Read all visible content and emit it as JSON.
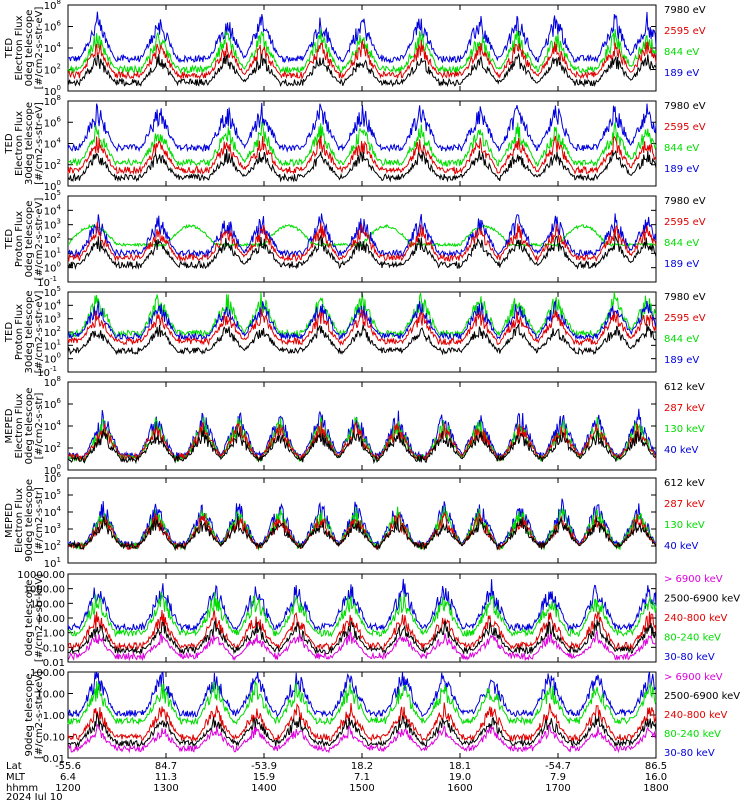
{
  "panels": [
    {
      "ylabel_lines": [
        "TED",
        "Electron Flux",
        "0deg telescope",
        "[#/cm2-s-str-eV]"
      ],
      "yticks": [
        {
          "label": "10",
          "exp": "0"
        },
        {
          "label": "10",
          "exp": "2"
        },
        {
          "label": "10",
          "exp": "4"
        },
        {
          "label": "10",
          "exp": "6"
        },
        {
          "label": "10",
          "exp": "8"
        }
      ],
      "ylim": [
        0,
        8
      ],
      "legend": [
        {
          "text": "7980 eV",
          "color": "#000000"
        },
        {
          "text": "2595 eV",
          "color": "#e00000"
        },
        {
          "text": "844 eV",
          "color": "#00dd00"
        },
        {
          "text": "189 eV",
          "color": "#0000dd"
        }
      ]
    },
    {
      "ylabel_lines": [
        "TED",
        "Electron Flux",
        "30deg telescope",
        "[#/cm2-s-str-eV]"
      ],
      "yticks": [
        {
          "label": "10",
          "exp": "0"
        },
        {
          "label": "10",
          "exp": "2"
        },
        {
          "label": "10",
          "exp": "4"
        },
        {
          "label": "10",
          "exp": "6"
        },
        {
          "label": "10",
          "exp": "8"
        }
      ],
      "ylim": [
        0,
        8
      ],
      "legend": [
        {
          "text": "7980 eV",
          "color": "#000000"
        },
        {
          "text": "2595 eV",
          "color": "#e00000"
        },
        {
          "text": "844 eV",
          "color": "#00dd00"
        },
        {
          "text": "189 eV",
          "color": "#0000dd"
        }
      ]
    },
    {
      "ylabel_lines": [
        "TED",
        "Proton Flux",
        "0deg telescope",
        "[#/cm2-s-str-eV]"
      ],
      "yticks": [
        {
          "label": "10",
          "exp": "-1"
        },
        {
          "label": "10",
          "exp": "0"
        },
        {
          "label": "10",
          "exp": "1"
        },
        {
          "label": "10",
          "exp": "2"
        },
        {
          "label": "10",
          "exp": "3"
        },
        {
          "label": "10",
          "exp": "4"
        },
        {
          "label": "10",
          "exp": "5"
        }
      ],
      "ylim": [
        -1,
        5
      ],
      "legend": [
        {
          "text": "7980 eV",
          "color": "#000000"
        },
        {
          "text": "2595 eV",
          "color": "#e00000"
        },
        {
          "text": "844 eV",
          "color": "#00dd00"
        },
        {
          "text": "189 eV",
          "color": "#0000dd"
        }
      ]
    },
    {
      "ylabel_lines": [
        "TED",
        "Proton Flux",
        "30deg telescope",
        "[#/cm2-s-str-eV]"
      ],
      "yticks": [
        {
          "label": "10",
          "exp": "-1"
        },
        {
          "label": "10",
          "exp": "0"
        },
        {
          "label": "10",
          "exp": "1"
        },
        {
          "label": "10",
          "exp": "2"
        },
        {
          "label": "10",
          "exp": "3"
        },
        {
          "label": "10",
          "exp": "4"
        },
        {
          "label": "10",
          "exp": "5"
        }
      ],
      "ylim": [
        -1,
        5
      ],
      "legend": [
        {
          "text": "7980 eV",
          "color": "#000000"
        },
        {
          "text": "2595 eV",
          "color": "#e00000"
        },
        {
          "text": "844 eV",
          "color": "#00dd00"
        },
        {
          "text": "189 eV",
          "color": "#0000dd"
        }
      ]
    },
    {
      "ylabel_lines": [
        "MEPED",
        "Electron Flux",
        "0deg telescope",
        "[#/cm2-s-str]"
      ],
      "yticks": [
        {
          "label": "10",
          "exp": "0"
        },
        {
          "label": "10",
          "exp": "2"
        },
        {
          "label": "10",
          "exp": "4"
        },
        {
          "label": "10",
          "exp": "6"
        },
        {
          "label": "10",
          "exp": "8"
        }
      ],
      "ylim": [
        0,
        8
      ],
      "legend": [
        {
          "text": "612 keV",
          "color": "#000000"
        },
        {
          "text": "287 keV",
          "color": "#e00000"
        },
        {
          "text": "130 keV",
          "color": "#00dd00"
        },
        {
          "text": "40 keV",
          "color": "#0000dd"
        }
      ]
    },
    {
      "ylabel_lines": [
        "MEPED",
        "Electron Flux",
        "90deg telescope",
        "[#/cm2-s-str]"
      ],
      "yticks": [
        {
          "label": "10",
          "exp": "1"
        },
        {
          "label": "10",
          "exp": "2"
        },
        {
          "label": "10",
          "exp": "3"
        },
        {
          "label": "10",
          "exp": "4"
        },
        {
          "label": "10",
          "exp": "5"
        },
        {
          "label": "10",
          "exp": "6"
        }
      ],
      "ylim": [
        1,
        6
      ],
      "legend": [
        {
          "text": "612 keV",
          "color": "#000000"
        },
        {
          "text": "287 keV",
          "color": "#e00000"
        },
        {
          "text": "130 keV",
          "color": "#00dd00"
        },
        {
          "text": "40 keV",
          "color": "#0000dd"
        }
      ]
    },
    {
      "ylabel_lines": [
        "0deg telescope",
        "[#/cm2-s-str-keV]"
      ],
      "yticks": [
        {
          "label": "0.01"
        },
        {
          "label": "0.10"
        },
        {
          "label": "1.00"
        },
        {
          "label": "10.00"
        },
        {
          "label": "100.00"
        },
        {
          "label": "1000.00"
        },
        {
          "label": "10000.00"
        }
      ],
      "ylim": [
        -2,
        4
      ],
      "legend": [
        {
          "text": "> 6900 keV",
          "color": "#dd00dd"
        },
        {
          "text": "2500-6900 keV",
          "color": "#000000"
        },
        {
          "text": "240-800 keV",
          "color": "#e00000"
        },
        {
          "text": "80-240 keV",
          "color": "#00dd00"
        },
        {
          "text": "30-80 keV",
          "color": "#0000dd"
        }
      ]
    },
    {
      "ylabel_lines": [
        "90deg telescope",
        "[#/cm2-s-str-keV]"
      ],
      "yticks": [
        {
          "label": "0.01"
        },
        {
          "label": "0.10"
        },
        {
          "label": "1.00"
        },
        {
          "label": "10.00"
        },
        {
          "label": "100.00"
        }
      ],
      "ylim": [
        -2,
        2.6
      ],
      "legend": [
        {
          "text": "> 6900 keV",
          "color": "#dd00dd"
        },
        {
          "text": "2500-6900 keV",
          "color": "#000000"
        },
        {
          "text": "240-800 keV",
          "color": "#e00000"
        },
        {
          "text": "80-240 keV",
          "color": "#00dd00"
        },
        {
          "text": "30-80 keV",
          "color": "#0000dd"
        }
      ]
    }
  ],
  "xaxis": {
    "row_labels": [
      "Lat",
      "MLT",
      "hhmm"
    ],
    "date": "2024 Jul 10",
    "ticks": [
      {
        "lat": "-55.6",
        "mlt": "6.4",
        "hhmm": "1200"
      },
      {
        "lat": "84.7",
        "mlt": "11.3",
        "hhmm": "1300"
      },
      {
        "lat": "-53.9",
        "mlt": "15.9",
        "hhmm": "1400"
      },
      {
        "lat": "18.2",
        "mlt": "7.1",
        "hhmm": "1500"
      },
      {
        "lat": "18.1",
        "mlt": "19.0",
        "hhmm": "1600"
      },
      {
        "lat": "-54.7",
        "mlt": "7.9",
        "hhmm": "1700"
      },
      {
        "lat": "86.5",
        "mlt": "16.0",
        "hhmm": "1800"
      }
    ]
  },
  "chart_data": [
    {
      "type": "line",
      "panel": 1,
      "x_range_hhmm": [
        "1200",
        "1800"
      ],
      "log_y": true,
      "ylim_exp": [
        0,
        8
      ],
      "series": [
        {
          "name": "189 eV",
          "color": "#0000dd",
          "baseline_log": 3.0
        },
        {
          "name": "844 eV",
          "color": "#00dd00",
          "baseline_log": 2.0
        },
        {
          "name": "2595 eV",
          "color": "#e00000",
          "baseline_log": 1.5
        },
        {
          "name": "7980 eV",
          "color": "#000000",
          "baseline_log": 0.8
        }
      ]
    },
    {
      "type": "line",
      "panel": 2,
      "x_range_hhmm": [
        "1200",
        "1800"
      ],
      "log_y": true,
      "ylim_exp": [
        0,
        8
      ],
      "series": [
        {
          "name": "189 eV",
          "color": "#0000dd",
          "baseline_log": 3.6
        },
        {
          "name": "844 eV",
          "color": "#00dd00",
          "baseline_log": 2.2
        },
        {
          "name": "2595 eV",
          "color": "#e00000",
          "baseline_log": 1.5
        },
        {
          "name": "7980 eV",
          "color": "#000000",
          "baseline_log": 0.8
        }
      ]
    },
    {
      "type": "line",
      "panel": 3,
      "x_range_hhmm": [
        "1200",
        "1800"
      ],
      "log_y": true,
      "ylim_exp": [
        -1,
        5
      ],
      "series": [
        {
          "name": "844 eV",
          "color": "#00dd00",
          "baseline_log": 1.6
        },
        {
          "name": "189 eV",
          "color": "#0000dd",
          "baseline_log": 1.0
        },
        {
          "name": "2595 eV",
          "color": "#e00000",
          "baseline_log": 0.7
        },
        {
          "name": "7980 eV",
          "color": "#000000",
          "baseline_log": 0.2
        }
      ]
    },
    {
      "type": "line",
      "panel": 4,
      "x_range_hhmm": [
        "1200",
        "1800"
      ],
      "log_y": true,
      "ylim_exp": [
        -1,
        5
      ],
      "series": [
        {
          "name": "844 eV",
          "color": "#00dd00",
          "baseline_log": 1.9
        },
        {
          "name": "189 eV",
          "color": "#0000dd",
          "baseline_log": 1.7
        },
        {
          "name": "2595 eV",
          "color": "#e00000",
          "baseline_log": 1.3
        },
        {
          "name": "7980 eV",
          "color": "#000000",
          "baseline_log": 0.6
        }
      ]
    },
    {
      "type": "line",
      "panel": 5,
      "x_range_hhmm": [
        "1200",
        "1800"
      ],
      "log_y": true,
      "ylim_exp": [
        0,
        8
      ],
      "series": [
        {
          "name": "40 keV",
          "color": "#0000dd",
          "baseline_log": 1.3
        },
        {
          "name": "130 keV",
          "color": "#00dd00",
          "baseline_log": 1.1
        },
        {
          "name": "287 keV",
          "color": "#e00000",
          "baseline_log": 1.2
        },
        {
          "name": "612 keV",
          "color": "#000000",
          "baseline_log": 1.0
        }
      ]
    },
    {
      "type": "line",
      "panel": 6,
      "x_range_hhmm": [
        "1200",
        "1800"
      ],
      "log_y": true,
      "ylim_exp": [
        1,
        6
      ],
      "series": [
        {
          "name": "40 keV",
          "color": "#0000dd",
          "baseline_log": 2.1
        },
        {
          "name": "130 keV",
          "color": "#00dd00",
          "baseline_log": 2.0
        },
        {
          "name": "287 keV",
          "color": "#e00000",
          "baseline_log": 2.0
        },
        {
          "name": "612 keV",
          "color": "#000000",
          "baseline_log": 2.0
        }
      ]
    },
    {
      "type": "line",
      "panel": 7,
      "x_range_hhmm": [
        "1200",
        "1800"
      ],
      "log_y": true,
      "ylim_exp": [
        -2,
        4
      ],
      "series": [
        {
          "name": "30-80 keV",
          "color": "#0000dd",
          "baseline_log": 0.4
        },
        {
          "name": "80-240 keV",
          "color": "#00dd00",
          "baseline_log": 0.0
        },
        {
          "name": "240-800 keV",
          "color": "#e00000",
          "baseline_log": -0.9
        },
        {
          "name": "2500-6900 keV",
          "color": "#000000",
          "baseline_log": -1.2
        },
        {
          "name": "> 6900 keV",
          "color": "#dd00dd",
          "baseline_log": -1.6
        }
      ]
    },
    {
      "type": "line",
      "panel": 8,
      "x_range_hhmm": [
        "1200",
        "1800"
      ],
      "log_y": true,
      "ylim_exp": [
        -2,
        2.6
      ],
      "series": [
        {
          "name": "30-80 keV",
          "color": "#0000dd",
          "baseline_log": 0.4
        },
        {
          "name": "80-240 keV",
          "color": "#00dd00",
          "baseline_log": 0.0
        },
        {
          "name": "240-800 keV",
          "color": "#e00000",
          "baseline_log": -0.9
        },
        {
          "name": "2500-6900 keV",
          "color": "#000000",
          "baseline_log": -1.2
        },
        {
          "name": "> 6900 keV",
          "color": "#dd00dd",
          "baseline_log": -1.5
        }
      ]
    }
  ]
}
